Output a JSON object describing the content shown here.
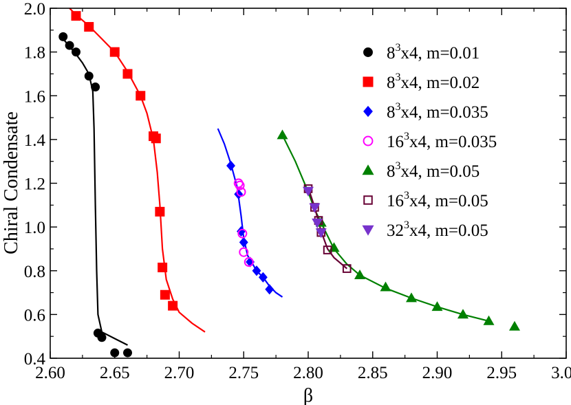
{
  "chart_data": {
    "type": "scatter",
    "xlabel": "β",
    "ylabel": "Chiral Condensate",
    "xlim": [
      2.6,
      3.0
    ],
    "ylim": [
      0.4,
      2.0
    ],
    "xticks": [
      "2.60",
      "2.65",
      "2.70",
      "2.75",
      "2.80",
      "2.85",
      "2.90",
      "2.95",
      "3.00"
    ],
    "yticks": [
      "0.4",
      "0.6",
      "0.8",
      "1.0",
      "1.2",
      "1.4",
      "1.6",
      "1.8",
      "2.0"
    ],
    "legend_position": "top-right",
    "series": [
      {
        "name": "8^3x4, m=0.01",
        "label_base": "8",
        "label_exp": "3",
        "label_rest": "x4, m=0.01",
        "marker": "circle",
        "filled": true,
        "color": "#000000",
        "points": [
          [
            2.61,
            1.87
          ],
          [
            2.615,
            1.83
          ],
          [
            2.62,
            1.8
          ],
          [
            2.63,
            1.69
          ],
          [
            2.635,
            1.64
          ],
          [
            2.637,
            0.515
          ],
          [
            2.64,
            0.495
          ],
          [
            2.65,
            0.425
          ],
          [
            2.66,
            0.425
          ]
        ],
        "curve": [
          [
            2.61,
            1.86
          ],
          [
            2.62,
            1.79
          ],
          [
            2.625,
            1.75
          ],
          [
            2.63,
            1.7
          ],
          [
            2.633,
            1.62
          ],
          [
            2.634,
            1.45
          ],
          [
            2.635,
            1.1
          ],
          [
            2.636,
            0.8
          ],
          [
            2.637,
            0.6
          ],
          [
            2.64,
            0.52
          ],
          [
            2.65,
            0.49
          ],
          [
            2.66,
            0.46
          ]
        ]
      },
      {
        "name": "8^3x4, m=0.02",
        "label_base": "8",
        "label_exp": "3",
        "label_rest": "x4, m=0.02",
        "marker": "square",
        "filled": true,
        "color": "#ff0000",
        "points": [
          [
            2.62,
            1.965
          ],
          [
            2.63,
            1.915
          ],
          [
            2.65,
            1.8
          ],
          [
            2.66,
            1.7
          ],
          [
            2.67,
            1.6
          ],
          [
            2.68,
            1.415
          ],
          [
            2.682,
            1.405
          ],
          [
            2.685,
            1.07
          ],
          [
            2.687,
            0.815
          ],
          [
            2.689,
            0.69
          ],
          [
            2.695,
            0.64
          ]
        ],
        "curve": [
          [
            2.615,
            2.0
          ],
          [
            2.62,
            1.97
          ],
          [
            2.63,
            1.92
          ],
          [
            2.64,
            1.86
          ],
          [
            2.65,
            1.8
          ],
          [
            2.66,
            1.71
          ],
          [
            2.67,
            1.6
          ],
          [
            2.675,
            1.52
          ],
          [
            2.68,
            1.4
          ],
          [
            2.683,
            1.25
          ],
          [
            2.685,
            1.1
          ],
          [
            2.687,
            0.9
          ],
          [
            2.69,
            0.76
          ],
          [
            2.695,
            0.67
          ],
          [
            2.7,
            0.61
          ],
          [
            2.71,
            0.56
          ],
          [
            2.72,
            0.52
          ]
        ]
      },
      {
        "name": "8^3x4, m=0.035",
        "label_base": "8",
        "label_exp": "3",
        "label_rest": "x4, m=0.035",
        "marker": "diamond",
        "filled": true,
        "color": "#0000ff",
        "points": [
          [
            2.74,
            1.28
          ],
          [
            2.746,
            1.15
          ],
          [
            2.748,
            0.98
          ],
          [
            2.75,
            0.93
          ],
          [
            2.755,
            0.84
          ],
          [
            2.76,
            0.8
          ],
          [
            2.765,
            0.77
          ],
          [
            2.77,
            0.715
          ]
        ],
        "curve": [
          [
            2.73,
            1.45
          ],
          [
            2.735,
            1.38
          ],
          [
            2.74,
            1.29
          ],
          [
            2.745,
            1.18
          ],
          [
            2.748,
            1.05
          ],
          [
            2.75,
            0.95
          ],
          [
            2.753,
            0.87
          ],
          [
            2.757,
            0.83
          ],
          [
            2.76,
            0.8
          ],
          [
            2.765,
            0.77
          ],
          [
            2.77,
            0.73
          ],
          [
            2.775,
            0.7
          ],
          [
            2.78,
            0.68
          ]
        ]
      },
      {
        "name": "16^3x4, m=0.035",
        "label_base": "16",
        "label_exp": "3",
        "label_rest": "x4, m=0.035",
        "marker": "circle",
        "filled": false,
        "color": "#ff00ff",
        "points": [
          [
            2.746,
            1.2
          ],
          [
            2.747,
            1.19
          ],
          [
            2.748,
            1.16
          ],
          [
            2.749,
            0.97
          ],
          [
            2.75,
            0.885
          ],
          [
            2.754,
            0.84
          ]
        ],
        "curve": []
      },
      {
        "name": "8^3x4, m=0.05",
        "label_base": "8",
        "label_exp": "3",
        "label_rest": "x4, m=0.05",
        "marker": "triangle-up",
        "filled": true,
        "color": "#008000",
        "points": [
          [
            2.78,
            1.42
          ],
          [
            2.81,
            1.02
          ],
          [
            2.82,
            0.905
          ],
          [
            2.84,
            0.78
          ],
          [
            2.86,
            0.725
          ],
          [
            2.88,
            0.675
          ],
          [
            2.9,
            0.635
          ],
          [
            2.92,
            0.6
          ],
          [
            2.94,
            0.57
          ],
          [
            2.96,
            0.545
          ]
        ],
        "curve": [
          [
            2.78,
            1.42
          ],
          [
            2.79,
            1.3
          ],
          [
            2.8,
            1.16
          ],
          [
            2.805,
            1.08
          ],
          [
            2.81,
            1.02
          ],
          [
            2.815,
            0.96
          ],
          [
            2.82,
            0.9
          ],
          [
            2.83,
            0.83
          ],
          [
            2.84,
            0.78
          ],
          [
            2.86,
            0.72
          ],
          [
            2.88,
            0.675
          ],
          [
            2.9,
            0.635
          ],
          [
            2.92,
            0.6
          ],
          [
            2.94,
            0.57
          ]
        ]
      },
      {
        "name": "16^3x4, m=0.05",
        "label_base": "16",
        "label_exp": "3",
        "label_rest": "x4, m=0.05",
        "marker": "square",
        "filled": false,
        "color": "#660033",
        "points": [
          [
            2.8,
            1.175
          ],
          [
            2.805,
            1.09
          ],
          [
            2.808,
            1.03
          ],
          [
            2.81,
            0.975
          ],
          [
            2.815,
            0.895
          ],
          [
            2.83,
            0.81
          ]
        ],
        "curve": [
          [
            2.8,
            1.18
          ],
          [
            2.805,
            1.09
          ],
          [
            2.81,
            0.98
          ],
          [
            2.815,
            0.9
          ],
          [
            2.82,
            0.86
          ],
          [
            2.83,
            0.81
          ]
        ]
      },
      {
        "name": "32^3x4, m=0.05",
        "label_base": "32",
        "label_exp": "3",
        "label_rest": "x4, m=0.05",
        "marker": "triangle-down",
        "filled": true,
        "color": "#7733cc",
        "points": [
          [
            2.8,
            1.165
          ],
          [
            2.805,
            1.09
          ],
          [
            2.807,
            1.02
          ],
          [
            2.81,
            0.975
          ]
        ],
        "curve": []
      }
    ]
  }
}
